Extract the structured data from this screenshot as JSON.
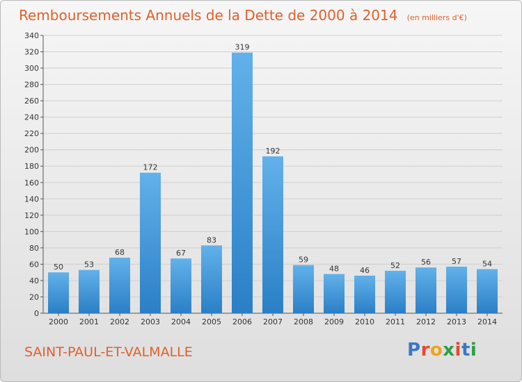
{
  "title": "Remboursements Annuels de la Dette de 2000 à 2014",
  "unit": "(en milliers d'€)",
  "commune": "SAINT-PAUL-ET-VALMALLE",
  "logo": {
    "text": "Proxiti",
    "colors": [
      "#3a78c8",
      "#e8482b",
      "#f2a21b",
      "#2e9e47",
      "#e8482b",
      "#3a78c8",
      "#2e9e47"
    ]
  },
  "colors": {
    "title": "#e0602a",
    "bar_light": "#62b1ea",
    "bar_dark": "#2a7fc6",
    "grid": "#cfcfcf",
    "axis": "#555555"
  },
  "chart_data": {
    "type": "bar",
    "categories": [
      "2000",
      "2001",
      "2002",
      "2003",
      "2004",
      "2005",
      "2006",
      "2007",
      "2008",
      "2009",
      "2010",
      "2011",
      "2012",
      "2013",
      "2014"
    ],
    "values": [
      50,
      53,
      68,
      172,
      67,
      83,
      319,
      192,
      59,
      48,
      46,
      52,
      56,
      57,
      54
    ],
    "ylim": [
      0,
      340
    ],
    "ytick_step": 20,
    "grid": true,
    "xlabel": "",
    "ylabel": ""
  }
}
